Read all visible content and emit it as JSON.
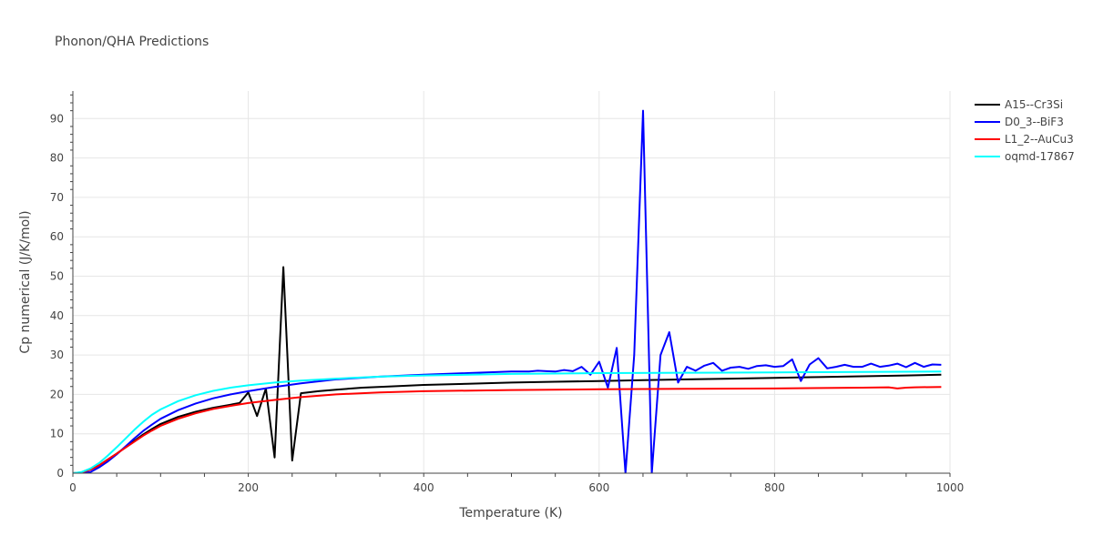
{
  "chart_data": {
    "type": "line",
    "title": "Phonon/QHA Predictions",
    "xlabel": "Temperature (K)",
    "ylabel": "Cp numerical (J/K/mol)",
    "xlim": [
      0,
      1000
    ],
    "ylim": [
      0,
      97
    ],
    "x_ticks": [
      0,
      200,
      400,
      600,
      800,
      1000
    ],
    "y_ticks": [
      0,
      10,
      20,
      30,
      40,
      50,
      60,
      70,
      80,
      90
    ],
    "grid": true,
    "legend_position": "top-right",
    "series": [
      {
        "name": "A15--Cr3Si",
        "color": "#000000",
        "x": [
          0,
          10,
          20,
          30,
          40,
          50,
          60,
          70,
          80,
          90,
          100,
          120,
          140,
          160,
          180,
          190,
          200,
          210,
          220,
          230,
          240,
          250,
          260,
          280,
          300,
          330,
          360,
          400,
          450,
          500,
          550,
          600,
          650,
          700,
          750,
          800,
          850,
          900,
          950,
          990
        ],
        "y": [
          0,
          0.2,
          0.9,
          2.0,
          3.5,
          5.0,
          6.6,
          8.2,
          9.8,
          11.2,
          12.5,
          14.3,
          15.6,
          16.6,
          17.4,
          17.8,
          20.5,
          14.5,
          21.5,
          4.0,
          52.3,
          3.2,
          20.3,
          20.8,
          21.2,
          21.7,
          22.0,
          22.4,
          22.7,
          23.0,
          23.2,
          23.4,
          23.6,
          23.8,
          24.0,
          24.2,
          24.4,
          24.6,
          24.8,
          25.0
        ]
      },
      {
        "name": "D0_3--BiF3",
        "color": "#0000ff",
        "x": [
          0,
          10,
          20,
          30,
          40,
          50,
          60,
          70,
          80,
          90,
          100,
          120,
          140,
          160,
          180,
          200,
          230,
          260,
          300,
          350,
          400,
          450,
          500,
          520,
          530,
          540,
          550,
          560,
          570,
          580,
          590,
          600,
          610,
          620,
          630,
          640,
          650,
          660,
          670,
          680,
          690,
          700,
          710,
          720,
          730,
          740,
          750,
          760,
          770,
          780,
          790,
          800,
          810,
          820,
          830,
          840,
          850,
          860,
          870,
          880,
          890,
          900,
          910,
          920,
          930,
          940,
          950,
          960,
          970,
          980,
          990
        ],
        "y": [
          0,
          0,
          0.3,
          1.5,
          3.0,
          4.8,
          6.8,
          8.8,
          10.7,
          12.3,
          13.8,
          16.0,
          17.7,
          19.0,
          20.0,
          20.8,
          21.9,
          22.8,
          23.8,
          24.5,
          25.0,
          25.4,
          25.8,
          25.8,
          26.0,
          25.9,
          25.8,
          26.2,
          25.9,
          27.0,
          25.0,
          28.3,
          21.7,
          31.8,
          0,
          30.0,
          92.0,
          0,
          30.0,
          35.8,
          23.0,
          27.0,
          26.0,
          27.3,
          28.0,
          26.0,
          26.8,
          27.0,
          26.5,
          27.2,
          27.4,
          27.0,
          27.2,
          28.9,
          23.4,
          27.6,
          29.2,
          26.6,
          27.0,
          27.5,
          27.0,
          27.0,
          27.8,
          27.0,
          27.3,
          27.8,
          26.9,
          28.0,
          27.0,
          27.6,
          27.5
        ]
      },
      {
        "name": "L1_2--AuCu3",
        "color": "#ff0000",
        "x": [
          0,
          10,
          20,
          30,
          40,
          50,
          60,
          70,
          80,
          90,
          100,
          120,
          140,
          160,
          180,
          200,
          230,
          260,
          300,
          350,
          400,
          500,
          600,
          700,
          800,
          900,
          930,
          940,
          950,
          960,
          990
        ],
        "y": [
          0,
          0.2,
          0.9,
          2.0,
          3.5,
          5.0,
          6.5,
          8.0,
          9.5,
          10.8,
          12.0,
          13.8,
          15.2,
          16.3,
          17.1,
          17.8,
          18.6,
          19.3,
          20.0,
          20.5,
          20.8,
          21.1,
          21.3,
          21.4,
          21.5,
          21.7,
          21.8,
          21.5,
          21.7,
          21.8,
          21.9
        ]
      },
      {
        "name": "oqmd-17867",
        "color": "#00ffff",
        "x": [
          0,
          10,
          20,
          30,
          40,
          50,
          60,
          70,
          80,
          90,
          100,
          120,
          140,
          160,
          180,
          200,
          230,
          260,
          300,
          350,
          400,
          500,
          600,
          700,
          800,
          900,
          990
        ],
        "y": [
          0,
          0.3,
          1.2,
          2.6,
          4.5,
          6.6,
          8.8,
          11.0,
          13.0,
          14.8,
          16.2,
          18.3,
          19.8,
          20.9,
          21.7,
          22.3,
          23.0,
          23.5,
          24.0,
          24.5,
          24.8,
          25.2,
          25.4,
          25.5,
          25.6,
          25.7,
          25.8
        ]
      }
    ]
  }
}
